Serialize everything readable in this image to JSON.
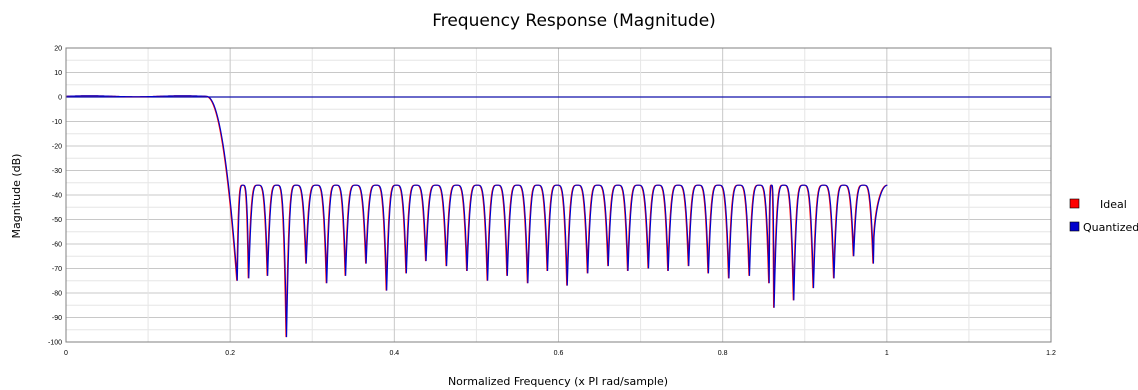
{
  "chart_data": {
    "type": "line",
    "title": "Frequency Response (Magnitude)",
    "xlabel": "Normalized Frequency (x PI rad/sample)",
    "ylabel": "Magnitude (dB)",
    "xlim": [
      0,
      1.2
    ],
    "ylim": [
      -100,
      20
    ],
    "x_ticks": [
      0,
      0.2,
      0.4,
      0.6,
      0.8,
      1,
      1.2
    ],
    "x_tick_labels": [
      "0",
      "0.2",
      "0.4",
      "0.6",
      "0.8",
      "1",
      "1.2"
    ],
    "y_ticks": [
      20,
      10,
      0,
      -10,
      -20,
      -30,
      -40,
      -50,
      -60,
      -70,
      -80,
      -90,
      -100
    ],
    "y_tick_labels": [
      "20",
      "10",
      "0",
      "-10",
      "-20",
      "-30",
      "-40",
      "-50",
      "-60",
      "-70",
      "-80",
      "-90",
      "-100"
    ],
    "grid": true,
    "legend_position": "right",
    "reference_line_y": 0,
    "series": [
      {
        "name": "Ideal",
        "color": "#ff0000"
      },
      {
        "name": "Quantized",
        "color": "#0000cc"
      }
    ],
    "passband": {
      "edge": 0.17,
      "level": 0.3,
      "ripple": 0.2
    },
    "transition": {
      "start": 0.17,
      "end": 0.208
    },
    "stopband": {
      "start": 0.208,
      "end": 1.0,
      "peak_level": -36,
      "nulls": [
        {
          "x": 0.208,
          "y": -75
        },
        {
          "x": 0.222,
          "y": -74
        },
        {
          "x": 0.245,
          "y": -73
        },
        {
          "x": 0.268,
          "y": -98
        },
        {
          "x": 0.292,
          "y": -68
        },
        {
          "x": 0.317,
          "y": -76
        },
        {
          "x": 0.34,
          "y": -73
        },
        {
          "x": 0.365,
          "y": -68
        },
        {
          "x": 0.39,
          "y": -79
        },
        {
          "x": 0.414,
          "y": -72
        },
        {
          "x": 0.438,
          "y": -67
        },
        {
          "x": 0.463,
          "y": -69
        },
        {
          "x": 0.488,
          "y": -71
        },
        {
          "x": 0.513,
          "y": -75
        },
        {
          "x": 0.537,
          "y": -73
        },
        {
          "x": 0.562,
          "y": -76
        },
        {
          "x": 0.586,
          "y": -71
        },
        {
          "x": 0.61,
          "y": -77
        },
        {
          "x": 0.635,
          "y": -72
        },
        {
          "x": 0.66,
          "y": -69
        },
        {
          "x": 0.684,
          "y": -71
        },
        {
          "x": 0.709,
          "y": -70
        },
        {
          "x": 0.733,
          "y": -71
        },
        {
          "x": 0.758,
          "y": -69
        },
        {
          "x": 0.782,
          "y": -72
        },
        {
          "x": 0.807,
          "y": -74
        },
        {
          "x": 0.832,
          "y": -73
        },
        {
          "x": 0.856,
          "y": -76
        },
        {
          "x": 0.862,
          "y": -86
        },
        {
          "x": 0.886,
          "y": -83
        },
        {
          "x": 0.91,
          "y": -78
        },
        {
          "x": 0.935,
          "y": -74
        },
        {
          "x": 0.959,
          "y": -65
        },
        {
          "x": 0.983,
          "y": -68
        }
      ]
    }
  }
}
